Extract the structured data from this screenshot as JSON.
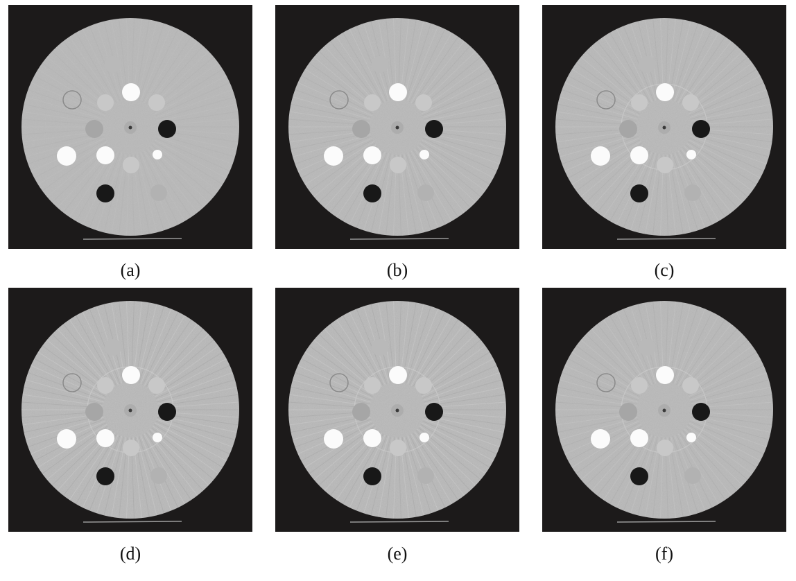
{
  "figure": {
    "panels": [
      {
        "label": "(a)",
        "ring": false,
        "streaks": 0
      },
      {
        "label": "(b)",
        "ring": false,
        "streaks": 1
      },
      {
        "label": "(c)",
        "ring": true,
        "streaks": 1
      },
      {
        "label": "(d)",
        "ring": true,
        "streaks": 2
      },
      {
        "label": "(e)",
        "ring": true,
        "streaks": 2
      },
      {
        "label": "(f)",
        "ring": true,
        "streaks": 1
      }
    ],
    "colors": {
      "background": "#1c1a1a",
      "phantom": "#b9b9b9",
      "insert_bright": "#fbfbfb",
      "insert_dark": "#181818",
      "insert_light": "#c8c8c8",
      "insert_mid": "#a6a6a6"
    }
  }
}
